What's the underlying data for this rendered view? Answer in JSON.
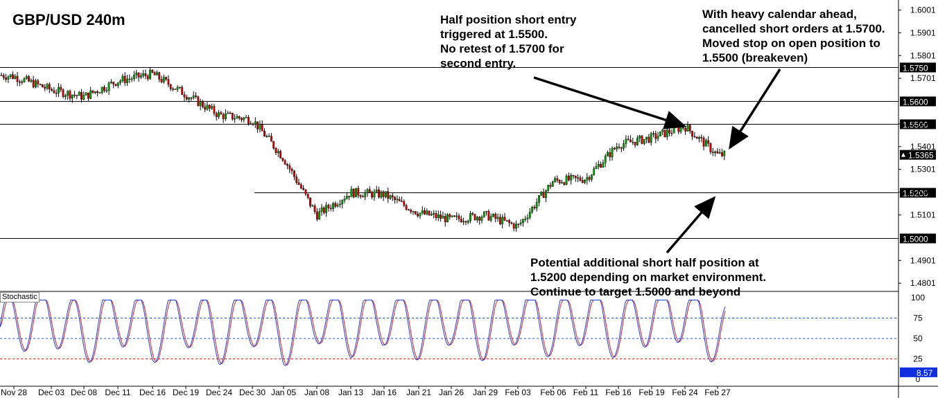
{
  "title": "GBP/USD 240m",
  "annotations": {
    "entry": "Half position short entry\ntriggered at 1.5500.\nNo retest of 1.5700 for\nsecond entry.",
    "calendar": "With heavy calendar ahead,\ncancelled short orders at 1.5700.\nMoved stop on open position to\n1.5500 (breakeven)",
    "potential": "Potential additional short half position at\n1.5200 depending on market environment.\nContinue to target 1.5000 and beyond"
  },
  "stochastic_label": "Stochastic",
  "colors": {
    "up_candle": "#00a000",
    "down_candle": "#cc0000",
    "stoch_k": "#1f3fd6",
    "stoch_d": "#d42020",
    "grid_blue": "#2a4fd0",
    "grid_red": "#d42020",
    "price_badge": "#000000",
    "stoch_badge": "#1030e0"
  },
  "chart_data": {
    "type": "line",
    "title": "GBP/USD 240m",
    "price_axis": {
      "ticks": [
        "1.6001",
        "1.5901",
        "1.5801",
        "1.5701",
        "1.5501",
        "1.5401",
        "1.5301",
        "1.5201",
        "1.5101",
        "1.4901",
        "1.4801"
      ],
      "tick_values": [
        1.6001,
        1.5901,
        1.5801,
        1.5701,
        1.5501,
        1.5401,
        1.5301,
        1.5201,
        1.5101,
        1.4901,
        1.4801
      ],
      "ylim": [
        1.4765,
        1.6045
      ]
    },
    "levels": [
      {
        "label": "1.5750",
        "value": 1.575
      },
      {
        "label": "1.5600",
        "value": 1.56
      },
      {
        "label": "1.5500",
        "value": 1.55
      },
      {
        "label": "1.5200",
        "value": 1.52
      },
      {
        "label": "1.5000",
        "value": 1.5
      }
    ],
    "current_price": {
      "label": "1.5365",
      "value": 1.5365
    },
    "x_labels": [
      "Nov 28",
      "Dec 03",
      "Dec 08",
      "Dec 11",
      "Dec 16",
      "Dec 19",
      "Dec 24",
      "Dec 30",
      "Jan 05",
      "Jan 08",
      "Jan 13",
      "Jan 16",
      "Jan 21",
      "Jan 26",
      "Jan 29",
      "Feb 03",
      "Feb 06",
      "Feb 11",
      "Feb 16",
      "Feb 19",
      "Feb 24",
      "Feb 27"
    ],
    "price_path": [
      [
        "Nov 28",
        1.571
      ],
      [
        "Dec 03",
        1.565
      ],
      [
        "Dec 08",
        1.562
      ],
      [
        "Dec 11",
        1.569
      ],
      [
        "Dec 16",
        1.572
      ],
      [
        "Dec 19",
        1.563
      ],
      [
        "Dec 24",
        1.554
      ],
      [
        "Dec 30",
        1.552
      ],
      [
        "Jan 05",
        1.535
      ],
      [
        "Jan 08",
        1.51
      ],
      [
        "Jan 13",
        1.52
      ],
      [
        "Jan 16",
        1.519
      ],
      [
        "Jan 21",
        1.511
      ],
      [
        "Jan 26",
        1.508
      ],
      [
        "Jan 29",
        1.51
      ],
      [
        "Feb 03",
        1.505
      ],
      [
        "Feb 06",
        1.525
      ],
      [
        "Feb 11",
        1.526
      ],
      [
        "Feb 16",
        1.541
      ],
      [
        "Feb 19",
        1.544
      ],
      [
        "Feb 24",
        1.549
      ],
      [
        "Feb 27",
        1.5365
      ]
    ],
    "stochastic": {
      "ticks": [
        "100",
        "75",
        "50",
        "25",
        "0"
      ],
      "tick_values": [
        100,
        75,
        50,
        25,
        0
      ],
      "levels": [
        75,
        50,
        25
      ],
      "ylim": [
        0,
        100
      ],
      "current": {
        "label": "8.57",
        "value": 8.57
      },
      "k_path": [
        [
          "Nov 28",
          55
        ],
        [
          "Dec 03",
          85
        ],
        [
          "Dec 08",
          12
        ],
        [
          "Dec 11",
          88
        ],
        [
          "Dec 16",
          20
        ],
        [
          "Dec 19",
          80
        ],
        [
          "Dec 24",
          15
        ],
        [
          "Dec 30",
          82
        ],
        [
          "Jan 05",
          8
        ],
        [
          "Jan 08",
          92
        ],
        [
          "Jan 13",
          40
        ],
        [
          "Jan 16",
          85
        ],
        [
          "Jan 21",
          30
        ],
        [
          "Jan 26",
          88
        ],
        [
          "Jan 29",
          25
        ],
        [
          "Feb 03",
          92
        ],
        [
          "Feb 06",
          35
        ],
        [
          "Feb 11",
          94
        ],
        [
          "Feb 16",
          30
        ],
        [
          "Feb 19",
          90
        ],
        [
          "Feb 24",
          95
        ],
        [
          "Feb 27",
          8.57
        ]
      ]
    }
  }
}
